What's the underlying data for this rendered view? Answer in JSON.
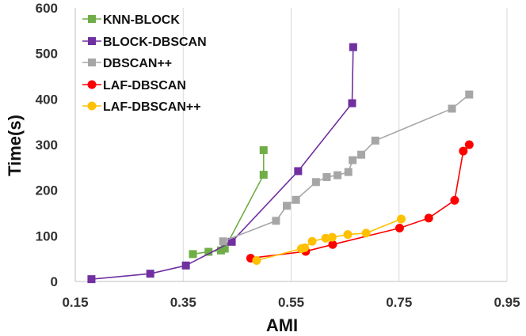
{
  "chart_data": {
    "type": "line",
    "title": "",
    "xlabel": "AMI",
    "ylabel": "Time(s)",
    "xlim": [
      0.15,
      0.95
    ],
    "ylim": [
      0,
      600
    ],
    "xticks": [
      0.15,
      0.35,
      0.55,
      0.75,
      0.95
    ],
    "xtick_labels": [
      "0.15",
      "0.35",
      "0.55",
      "0.75",
      "0.95"
    ],
    "yticks": [
      0,
      100,
      200,
      300,
      400,
      500,
      600
    ],
    "ytick_labels": [
      "0",
      "100",
      "200",
      "300",
      "400",
      "500",
      "600"
    ],
    "grid": "vertical",
    "legend_position": "top-left",
    "series": [
      {
        "name": "KNN-BLOCK",
        "color": "#70ad47",
        "marker": "square",
        "x": [
          0.368,
          0.397,
          0.42,
          0.427,
          0.499,
          0.499
        ],
        "y": [
          60,
          65,
          68,
          72,
          234,
          288
        ]
      },
      {
        "name": "BLOCK-DBSCAN",
        "color": "#7030a0",
        "marker": "square",
        "x": [
          0.18,
          0.289,
          0.355,
          0.44,
          0.563,
          0.663,
          0.665
        ],
        "y": [
          5,
          17,
          35,
          87,
          242,
          391,
          514
        ]
      },
      {
        "name": "DBSCAN++",
        "color": "#a6a6a6",
        "marker": "square",
        "x": [
          0.424,
          0.522,
          0.542,
          0.559,
          0.596,
          0.616,
          0.636,
          0.656,
          0.664,
          0.68,
          0.706,
          0.848,
          0.88
        ],
        "y": [
          88,
          133,
          166,
          179,
          218,
          229,
          233,
          240,
          266,
          278,
          309,
          379,
          410
        ]
      },
      {
        "name": "LAF-DBSCAN",
        "color": "#ff0000",
        "marker": "circle",
        "x": [
          0.475,
          0.577,
          0.627,
          0.751,
          0.805,
          0.853,
          0.869,
          0.88
        ],
        "y": [
          51,
          66,
          81,
          117,
          139,
          178,
          286,
          300
        ]
      },
      {
        "name": "LAF-DBSCAN++",
        "color": "#ffc000",
        "marker": "circle",
        "x": [
          0.486,
          0.569,
          0.575,
          0.589,
          0.614,
          0.626,
          0.655,
          0.689,
          0.754
        ],
        "y": [
          46,
          72,
          74,
          88,
          95,
          97,
          103,
          106,
          137
        ]
      }
    ]
  }
}
